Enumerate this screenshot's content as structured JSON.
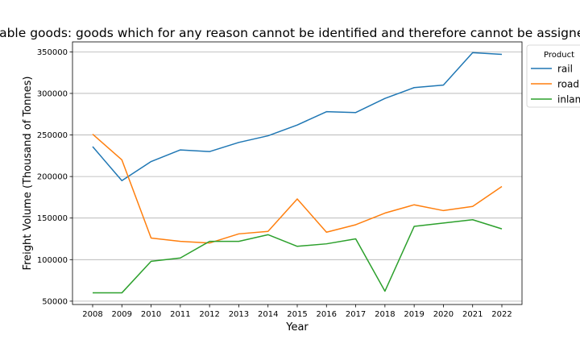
{
  "chart_data": {
    "type": "line",
    "title": "Unidentifiable goods: goods which for any reason cannot be identified and therefore cannot be assigned to groups",
    "xlabel": "Year",
    "ylabel": "Freight Volume (Thousand of Tonnes)",
    "x": [
      "2008",
      "2009",
      "2010",
      "2011",
      "2012",
      "2013",
      "2014",
      "2015",
      "2016",
      "2017",
      "2018",
      "2019",
      "2020",
      "2021",
      "2022"
    ],
    "ylim": [
      46000,
      362000
    ],
    "yticks": [
      50000,
      100000,
      150000,
      200000,
      250000,
      300000,
      350000
    ],
    "grid": "horizontal",
    "legend": {
      "title": "Product",
      "placement": "top-right, outside"
    },
    "series": [
      {
        "name": "rail",
        "color": "#1f77b4",
        "values": [
          236000,
          195000,
          218000,
          232000,
          230000,
          241000,
          249000,
          262000,
          278000,
          277000,
          294000,
          307000,
          310000,
          349000,
          347000
        ]
      },
      {
        "name": "road",
        "color": "#ff7f0e",
        "values": [
          251000,
          220000,
          126000,
          122000,
          120000,
          131000,
          134000,
          173000,
          133000,
          142000,
          156000,
          166000,
          159000,
          164000,
          188000
        ]
      },
      {
        "name": "inland",
        "color": "#2ca02c",
        "values": [
          60000,
          60000,
          98000,
          102000,
          122000,
          122000,
          130000,
          116000,
          119000,
          125000,
          62000,
          140000,
          144000,
          148000,
          137000
        ]
      }
    ]
  }
}
